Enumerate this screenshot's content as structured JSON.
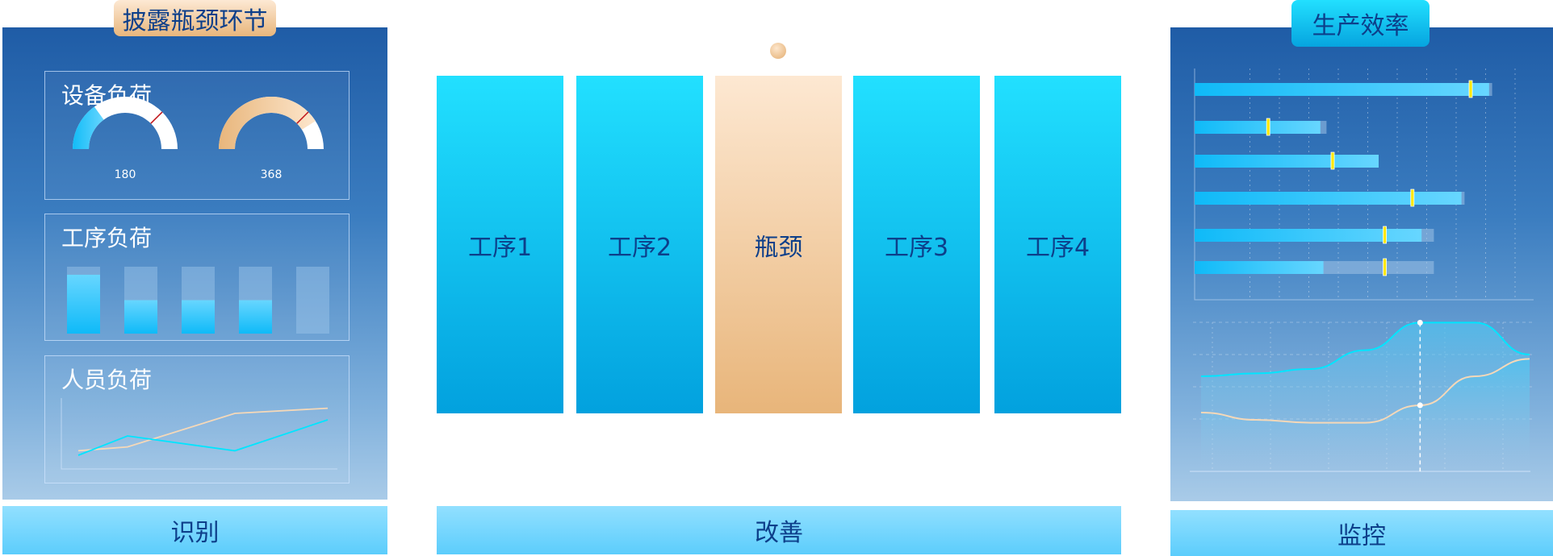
{
  "colors": {
    "accent_cyan": "#12c3f7",
    "accent_peach": "#e8b67c",
    "text_dark": "#0d3f8a",
    "marker": "#ffe800",
    "line_cyan": "#00e5ff",
    "line_peach": "#f5d8b8"
  },
  "left": {
    "title": "披露瓶颈环节",
    "footer": "识别",
    "equipment": {
      "title": "设备负荷",
      "gauges": [
        {
          "value": "180",
          "fill": 0.3,
          "limit": 0.75,
          "color": "cyan"
        },
        {
          "value": "368",
          "fill": 0.82,
          "limit": 0.75,
          "color": "peach"
        }
      ]
    },
    "process": {
      "title": "工序负荷",
      "bars": [
        0.88,
        0.5,
        0.5,
        0.5,
        0
      ]
    },
    "staff": {
      "title": "人员负荷",
      "series": [
        {
          "color": "peach",
          "values": [
            0.22,
            0.28,
            0.8,
            0.88
          ]
        },
        {
          "color": "cyan",
          "values": [
            0.15,
            0.45,
            0.22,
            0.7
          ]
        }
      ]
    }
  },
  "center": {
    "footer": "改善",
    "columns": [
      {
        "label": "工序1",
        "bottleneck": false
      },
      {
        "label": "工序2",
        "bottleneck": false
      },
      {
        "label": "瓶颈",
        "bottleneck": true
      },
      {
        "label": "工序3",
        "bottleneck": false
      },
      {
        "label": "工序4",
        "bottleneck": false
      }
    ]
  },
  "right": {
    "title": "生产效率",
    "footer": "监控",
    "bar_chart": {
      "rows": [
        {
          "fill": 0.96,
          "total": 0.97,
          "marker": 0.9
        },
        {
          "fill": 0.41,
          "total": 0.43,
          "marker": 0.24
        },
        {
          "fill": 0.6,
          "total": 0.6,
          "marker": 0.45
        },
        {
          "fill": 0.87,
          "total": 0.88,
          "marker": 0.71
        },
        {
          "fill": 0.74,
          "total": 0.78,
          "marker": 0.62
        },
        {
          "fill": 0.42,
          "total": 0.78,
          "marker": 0.62
        }
      ]
    },
    "line_chart": {
      "series": [
        {
          "color": "cyan",
          "values": [
            0.6,
            0.62,
            0.65,
            0.78,
            0.97,
            0.97,
            0.75
          ]
        },
        {
          "color": "peach",
          "values": [
            0.35,
            0.3,
            0.28,
            0.28,
            0.4,
            0.6,
            0.72
          ]
        }
      ],
      "highlight_index": 4
    }
  }
}
